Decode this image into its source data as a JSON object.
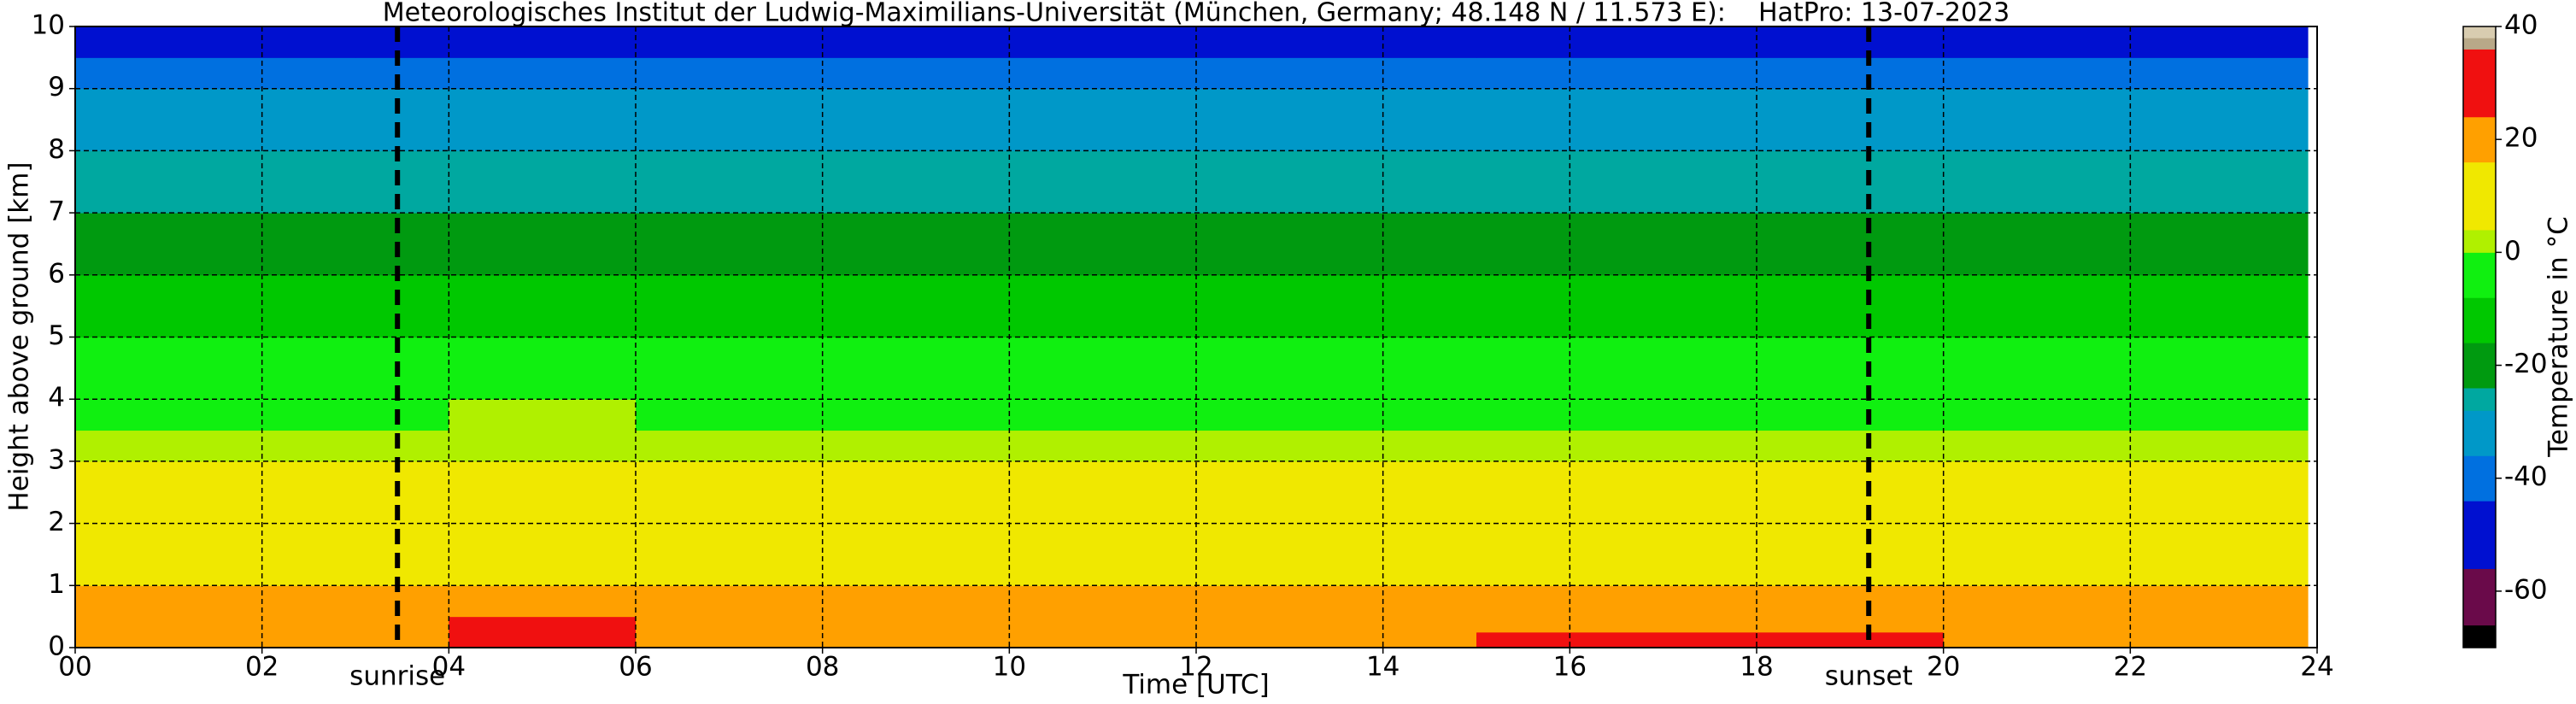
{
  "chart_data": {
    "type": "heatmap",
    "title": "Meteorologisches Institut der Ludwig-Maximilians-Universität (München, Germany; 48.148 N / 11.573 E):    HatPro: 13-07-2023",
    "x_label": "Time [UTC]",
    "y_label": "Height above ground [km]",
    "xlim": [
      0,
      24
    ],
    "ylim": [
      0,
      10
    ],
    "xticks": [
      {
        "value": 0,
        "label": "00"
      },
      {
        "value": 2,
        "label": "02"
      },
      {
        "value": 4,
        "label": "04"
      },
      {
        "value": 6,
        "label": "06"
      },
      {
        "value": 8,
        "label": "08"
      },
      {
        "value": 10,
        "label": "10"
      },
      {
        "value": 12,
        "label": "12"
      },
      {
        "value": 14,
        "label": "14"
      },
      {
        "value": 16,
        "label": "16"
      },
      {
        "value": 18,
        "label": "18"
      },
      {
        "value": 20,
        "label": "20"
      },
      {
        "value": 22,
        "label": "22"
      },
      {
        "value": 24,
        "label": "24"
      }
    ],
    "yticks": [
      0,
      1,
      2,
      3,
      4,
      5,
      6,
      7,
      8,
      9,
      10
    ],
    "grid": true,
    "x_edges": [
      0,
      3,
      4,
      6,
      9,
      12,
      15,
      18,
      20,
      22,
      23.9
    ],
    "y_edges": [
      0,
      0.25,
      0.5,
      1,
      1.5,
      2,
      2.5,
      3,
      3.5,
      4,
      5,
      6,
      7,
      8,
      9,
      9.5,
      10
    ],
    "values": [
      [
        20,
        20,
        27,
        21,
        20,
        22,
        25,
        24,
        21,
        20
      ],
      [
        18,
        18,
        25,
        19,
        18,
        20,
        22,
        21,
        19,
        18
      ],
      [
        17,
        17,
        21,
        17,
        17,
        18,
        19,
        18,
        17,
        17
      ],
      [
        13,
        13,
        15,
        13,
        13,
        13,
        14,
        14,
        13,
        13
      ],
      [
        11,
        11,
        12,
        11,
        11,
        11,
        11,
        11,
        11,
        11
      ],
      [
        8,
        8,
        9,
        8,
        8,
        8,
        8,
        8,
        8,
        8
      ],
      [
        5,
        5,
        6,
        5,
        5,
        5,
        5,
        5,
        5,
        5
      ],
      [
        2,
        2,
        3,
        2,
        2,
        2,
        2,
        2,
        2,
        2
      ],
      [
        -1,
        -1,
        1,
        -1,
        -1,
        -1,
        -1,
        -1,
        -1,
        -1
      ],
      [
        -6,
        -6,
        -5,
        -6,
        -6,
        -6,
        -6,
        -6,
        -6,
        -6
      ],
      [
        -13,
        -13,
        -12,
        -13,
        -13,
        -13,
        -13,
        -13,
        -13,
        -13
      ],
      [
        -20,
        -20,
        -19,
        -20,
        -20,
        -20,
        -20,
        -20,
        -20,
        -20
      ],
      [
        -27,
        -27,
        -26,
        -27,
        -27,
        -27,
        -27,
        -27,
        -27,
        -27
      ],
      [
        -34,
        -34,
        -33,
        -34,
        -34,
        -34,
        -34,
        -34,
        -34,
        -34
      ],
      [
        -42,
        -42,
        -41,
        -42,
        -42,
        -42,
        -42,
        -42,
        -42,
        -42
      ],
      [
        -50,
        -50,
        -49,
        -50,
        -50,
        -50,
        -50,
        -50,
        -50,
        -50
      ]
    ],
    "annotations": [
      {
        "text": "sunrise",
        "x": 3.45
      },
      {
        "text": "sunset",
        "x": 19.2
      }
    ],
    "colorbar": {
      "label": "Temperature in °C",
      "lim": [
        -70,
        40
      ],
      "ticks": [
        -60,
        -40,
        -20,
        0,
        20,
        40
      ],
      "levels": [
        -70,
        -66,
        -56,
        -44,
        -36,
        -28,
        -24,
        -16,
        -8,
        0,
        4,
        16,
        24,
        36,
        38,
        40
      ],
      "colors": [
        "#000000",
        "#6a0a4a",
        "#0010d0",
        "#0070e0",
        "#0098c8",
        "#00a8a0",
        "#009a10",
        "#00c800",
        "#10f010",
        "#b0f000",
        "#f0e800",
        "#ffa000",
        "#f01010",
        "#b8a888",
        "#d8ccb0"
      ]
    }
  }
}
